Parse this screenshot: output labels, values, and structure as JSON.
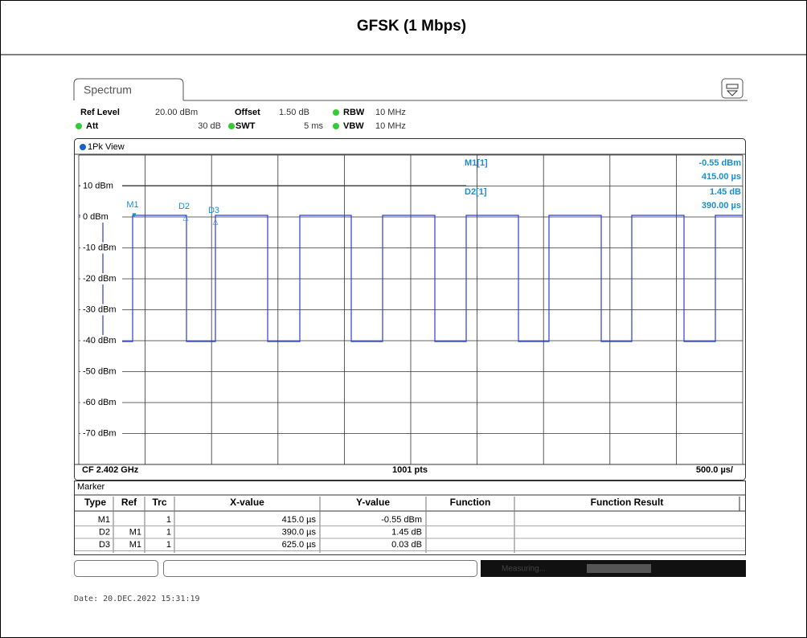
{
  "title": "GFSK (1 Mbps)",
  "tab": "Spectrum",
  "settings": [
    {
      "label": "Ref Level",
      "value": "20.00 dBm"
    },
    {
      "label": "Offset",
      "value": "1.50 dB"
    },
    {
      "label": "RBW",
      "value": "10 MHz"
    },
    {
      "label": "Att",
      "value": "30 dB"
    },
    {
      "label": "SWT",
      "value": "5 ms"
    },
    {
      "label": "VBW",
      "value": "10 MHz"
    }
  ],
  "view": "1Pk View",
  "y_labels": [
    "10 dBm",
    "0 dBm",
    "-10 dBm",
    "-20 dBm",
    "-30 dBm",
    "-40 dBm",
    "-50 dBm",
    "-60 dBm",
    "-70 dBm"
  ],
  "marker_labels": [
    "M1",
    "D2",
    "D3"
  ],
  "readout": [
    {
      "name": "M1[1]",
      "lines": [
        "-0.55 dBm",
        "415.00 µs"
      ]
    },
    {
      "name": "D2[1]",
      "lines": [
        "1.45 dB",
        "390.00 µs"
      ]
    }
  ],
  "footer": {
    "center_freq": "CF 2.402 GHz",
    "points": "1001 pts",
    "span_per_div": "500.0 µs/"
  },
  "marker_table": {
    "title": "Marker",
    "columns": [
      "Type",
      "Ref",
      "Trc",
      "X-value",
      "Y-value",
      "Function",
      "Function Result"
    ],
    "rows": [
      {
        "type": "M1",
        "trc": "1",
        "x": "415.0 µs",
        "y": "-0.55 dBm"
      },
      {
        "type": "D2",
        "ref": "M1",
        "trc": "1",
        "x": "390.0 µs",
        "y": "1.45 dB"
      },
      {
        "type": "D3",
        "ref": "M1",
        "trc": "1",
        "x": "625.0 µs",
        "y": "0.03 dB"
      }
    ]
  },
  "status": "Measuring...",
  "date": "Date: 20.DEC.2022  15:31:19"
}
